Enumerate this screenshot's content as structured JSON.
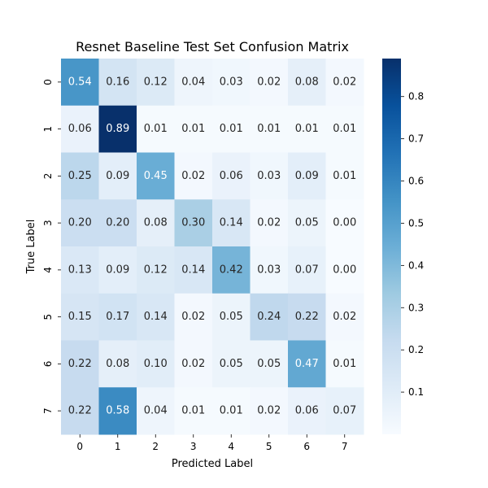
{
  "chart_data": {
    "type": "heatmap",
    "title": "Resnet Baseline Test Set Confusion Matrix",
    "xlabel": "Predicted Label",
    "ylabel": "True Label",
    "x_categories": [
      "0",
      "1",
      "2",
      "3",
      "4",
      "5",
      "6",
      "7"
    ],
    "y_categories": [
      "0",
      "1",
      "2",
      "3",
      "4",
      "5",
      "6",
      "7"
    ],
    "values": [
      [
        0.54,
        0.16,
        0.12,
        0.04,
        0.03,
        0.02,
        0.08,
        0.02
      ],
      [
        0.06,
        0.89,
        0.01,
        0.01,
        0.01,
        0.01,
        0.01,
        0.01
      ],
      [
        0.25,
        0.09,
        0.45,
        0.02,
        0.06,
        0.03,
        0.09,
        0.01
      ],
      [
        0.2,
        0.2,
        0.08,
        0.3,
        0.14,
        0.02,
        0.05,
        0.0
      ],
      [
        0.13,
        0.09,
        0.12,
        0.14,
        0.42,
        0.03,
        0.07,
        0.0
      ],
      [
        0.15,
        0.17,
        0.14,
        0.02,
        0.05,
        0.24,
        0.22,
        0.02
      ],
      [
        0.22,
        0.08,
        0.1,
        0.02,
        0.05,
        0.05,
        0.47,
        0.01
      ],
      [
        0.22,
        0.58,
        0.04,
        0.01,
        0.01,
        0.02,
        0.06,
        0.07
      ]
    ],
    "value_labels": [
      [
        "0.54",
        "0.16",
        "0.12",
        "0.04",
        "0.03",
        "0.02",
        "0.08",
        "0.02"
      ],
      [
        "0.06",
        "0.89",
        "0.01",
        "0.01",
        "0.01",
        "0.01",
        "0.01",
        "0.01"
      ],
      [
        "0.25",
        "0.09",
        "0.45",
        "0.02",
        "0.06",
        "0.03",
        "0.09",
        "0.01"
      ],
      [
        "0.20",
        "0.20",
        "0.08",
        "0.30",
        "0.14",
        "0.02",
        "0.05",
        "0.00"
      ],
      [
        "0.13",
        "0.09",
        "0.12",
        "0.14",
        "0.42",
        "0.03",
        "0.07",
        "0.00"
      ],
      [
        "0.15",
        "0.17",
        "0.14",
        "0.02",
        "0.05",
        "0.24",
        "0.22",
        "0.02"
      ],
      [
        "0.22",
        "0.08",
        "0.10",
        "0.02",
        "0.05",
        "0.05",
        "0.47",
        "0.01"
      ],
      [
        "0.22",
        "0.58",
        "0.04",
        "0.01",
        "0.01",
        "0.02",
        "0.06",
        "0.07"
      ]
    ],
    "colorscale": "Blues",
    "color_range": [
      0.0,
      0.89
    ],
    "colorbar_ticks": [
      0.1,
      0.2,
      0.3,
      0.4,
      0.5,
      0.6,
      0.7,
      0.8
    ],
    "colorbar_tick_labels": [
      "0.1",
      "0.2",
      "0.3",
      "0.4",
      "0.5",
      "0.6",
      "0.7",
      "0.8"
    ]
  }
}
